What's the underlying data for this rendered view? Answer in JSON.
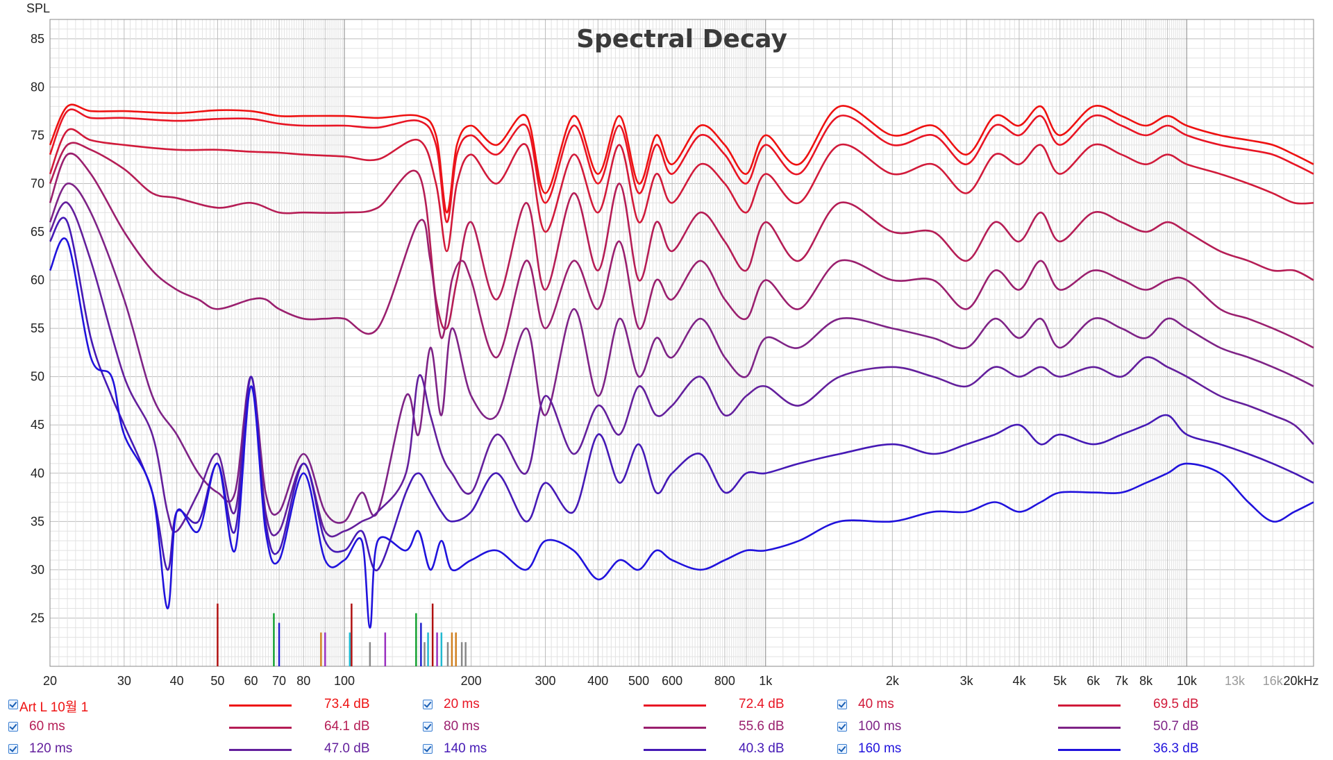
{
  "chart_data": {
    "type": "line",
    "title": "Spectral Decay",
    "ylabel": "SPL",
    "xlabel": "",
    "xscale": "log",
    "xlim": [
      20,
      20000
    ],
    "ylim": [
      20,
      87
    ],
    "y_ticks": [
      25,
      30,
      35,
      40,
      45,
      50,
      55,
      60,
      65,
      70,
      75,
      80,
      85
    ],
    "x_ticks": [
      {
        "v": 20,
        "label": "20"
      },
      {
        "v": 30,
        "label": "30"
      },
      {
        "v": 40,
        "label": "40"
      },
      {
        "v": 50,
        "label": "50"
      },
      {
        "v": 60,
        "label": "60"
      },
      {
        "v": 70,
        "label": "70"
      },
      {
        "v": 80,
        "label": "80"
      },
      {
        "v": 100,
        "label": "100"
      },
      {
        "v": 200,
        "label": "200"
      },
      {
        "v": 300,
        "label": "300"
      },
      {
        "v": 400,
        "label": "400"
      },
      {
        "v": 500,
        "label": "500"
      },
      {
        "v": 600,
        "label": "600"
      },
      {
        "v": 800,
        "label": "800"
      },
      {
        "v": 1000,
        "label": "1k"
      },
      {
        "v": 2000,
        "label": "2k"
      },
      {
        "v": 3000,
        "label": "3k"
      },
      {
        "v": 4000,
        "label": "4k"
      },
      {
        "v": 5000,
        "label": "5k"
      },
      {
        "v": 6000,
        "label": "6k"
      },
      {
        "v": 7000,
        "label": "7k"
      },
      {
        "v": 8000,
        "label": "8k"
      },
      {
        "v": 10000,
        "label": "10k"
      },
      {
        "v": 13000,
        "label": "13k",
        "grey": true
      },
      {
        "v": 16000,
        "label": "16k",
        "grey": true
      },
      {
        "v": 20000,
        "label": "20kHz"
      }
    ],
    "series": [
      {
        "name": "Art L 10월 1",
        "value_label": "73.4 dB",
        "color": "#ee1111",
        "x": [
          20,
          22,
          25,
          30,
          40,
          50,
          60,
          70,
          80,
          100,
          120,
          150,
          165,
          175,
          185,
          200,
          230,
          270,
          300,
          350,
          400,
          450,
          500,
          550,
          600,
          700,
          800,
          900,
          1000,
          1200,
          1500,
          2000,
          2500,
          3000,
          3500,
          4000,
          4500,
          5000,
          6000,
          7000,
          8000,
          9000,
          10000,
          12000,
          14000,
          16000,
          18000,
          20000
        ],
        "y": [
          74,
          78,
          77.5,
          77.5,
          77.3,
          77.6,
          77.5,
          77,
          77,
          77,
          76.8,
          77,
          75,
          67,
          74,
          76,
          74,
          77,
          69,
          77,
          71,
          77,
          70,
          75,
          72,
          76,
          74,
          71,
          75,
          72,
          78,
          75,
          76,
          73,
          77,
          76,
          78,
          75,
          78,
          77,
          76,
          77,
          76,
          75,
          74.5,
          74,
          73,
          72
        ]
      },
      {
        "name": "20 ms",
        "value_label": "72.4 dB",
        "color": "#e81524",
        "x": [
          20,
          22,
          25,
          30,
          40,
          50,
          60,
          70,
          80,
          100,
          120,
          150,
          165,
          175,
          185,
          200,
          230,
          270,
          300,
          350,
          400,
          450,
          500,
          550,
          600,
          700,
          800,
          900,
          1000,
          1200,
          1500,
          2000,
          2500,
          3000,
          3500,
          4000,
          4500,
          5000,
          6000,
          7000,
          8000,
          9000,
          10000,
          12000,
          14000,
          16000,
          18000,
          20000
        ],
        "y": [
          73,
          77.5,
          76.8,
          76.8,
          76.5,
          76.7,
          76.7,
          76.2,
          76,
          76,
          75.8,
          76.5,
          74,
          66,
          73,
          75,
          73,
          76,
          68,
          76,
          70,
          76,
          69,
          74,
          71,
          75,
          73,
          70,
          74,
          71,
          77,
          74,
          75,
          72,
          76,
          75,
          77,
          74,
          77,
          76,
          75,
          76,
          75,
          74,
          73.5,
          73,
          72,
          71
        ]
      },
      {
        "name": "40 ms",
        "value_label": "69.5 dB",
        "color": "#d11a3a",
        "x": [
          20,
          22,
          25,
          30,
          40,
          50,
          60,
          70,
          80,
          100,
          120,
          150,
          165,
          175,
          185,
          200,
          230,
          270,
          300,
          350,
          400,
          450,
          500,
          550,
          600,
          700,
          800,
          900,
          1000,
          1200,
          1500,
          2000,
          2500,
          3000,
          3500,
          4000,
          4500,
          5000,
          6000,
          7000,
          8000,
          9000,
          10000,
          12000,
          14000,
          16000,
          18000,
          20000
        ],
        "y": [
          71,
          75.5,
          74.5,
          74,
          73.5,
          73.5,
          73.3,
          73.2,
          73,
          72.8,
          72.5,
          74.5,
          70,
          63,
          70,
          73,
          70,
          74,
          65,
          73,
          67,
          74,
          66,
          71,
          68,
          72,
          70,
          67,
          71,
          68,
          74,
          71,
          72,
          69,
          73,
          72,
          74,
          71,
          74,
          73,
          72,
          73,
          72,
          71,
          70,
          69,
          68,
          68
        ]
      },
      {
        "name": "60 ms",
        "value_label": "64.1 dB",
        "color": "#b51d55",
        "x": [
          20,
          22,
          25,
          30,
          35,
          40,
          50,
          60,
          70,
          80,
          100,
          120,
          150,
          165,
          175,
          185,
          200,
          230,
          270,
          300,
          350,
          400,
          450,
          500,
          550,
          600,
          700,
          800,
          900,
          1000,
          1200,
          1500,
          2000,
          2500,
          3000,
          3500,
          4000,
          4500,
          5000,
          6000,
          7000,
          8000,
          9000,
          10000,
          12000,
          14000,
          16000,
          18000,
          20000
        ],
        "y": [
          70,
          74,
          73.5,
          71.5,
          69,
          68.5,
          67.5,
          68,
          67,
          67,
          67,
          67.5,
          71,
          58,
          55,
          60,
          66,
          58,
          68,
          59,
          69,
          61,
          70,
          60,
          66,
          63,
          67,
          64,
          61,
          66,
          62,
          68,
          65,
          65,
          62,
          66,
          64,
          67,
          64,
          67,
          66,
          65,
          66,
          65,
          63,
          62,
          61,
          61,
          60
        ]
      },
      {
        "name": "80 ms",
        "value_label": "55.6 dB",
        "color": "#9a1f6e",
        "x": [
          20,
          22,
          25,
          30,
          35,
          40,
          45,
          50,
          60,
          65,
          70,
          80,
          90,
          100,
          120,
          150,
          160,
          170,
          180,
          190,
          200,
          230,
          270,
          300,
          350,
          400,
          450,
          500,
          550,
          600,
          700,
          800,
          900,
          1000,
          1200,
          1500,
          2000,
          2500,
          3000,
          3500,
          4000,
          4500,
          5000,
          6000,
          7000,
          8000,
          9000,
          10000,
          12000,
          14000,
          16000,
          18000,
          20000
        ],
        "y": [
          68,
          73,
          71,
          65,
          61,
          59,
          58,
          57,
          58,
          58,
          57,
          56,
          56,
          56,
          55,
          66,
          62,
          54,
          60,
          62,
          60,
          52,
          62,
          55,
          62,
          57,
          64,
          55,
          60,
          58,
          62,
          58,
          56,
          60,
          57,
          62,
          60,
          60,
          57,
          61,
          59,
          62,
          59,
          61,
          60,
          59,
          60,
          60,
          57,
          56,
          55,
          54,
          53
        ]
      },
      {
        "name": "100 ms",
        "value_label": "50.7 dB",
        "color": "#7e2386",
        "x": [
          20,
          22,
          25,
          30,
          35,
          40,
          45,
          50,
          55,
          60,
          65,
          70,
          80,
          90,
          100,
          110,
          120,
          140,
          150,
          160,
          170,
          180,
          200,
          230,
          270,
          300,
          350,
          400,
          450,
          500,
          550,
          600,
          700,
          800,
          900,
          1000,
          1200,
          1500,
          2000,
          2500,
          3000,
          3500,
          4000,
          4500,
          5000,
          6000,
          7000,
          8000,
          9000,
          10000,
          12000,
          14000,
          16000,
          18000,
          20000
        ],
        "y": [
          66,
          70,
          67,
          58,
          48,
          44,
          40,
          38,
          38,
          50,
          38,
          36,
          42,
          36,
          35,
          38,
          36,
          48,
          44,
          53,
          46,
          55,
          48,
          46,
          55,
          46,
          57,
          48,
          56,
          50,
          54,
          52,
          56,
          52,
          50,
          54,
          53,
          56,
          55,
          54,
          53,
          56,
          54,
          56,
          53,
          56,
          55,
          54,
          56,
          55,
          53,
          52,
          51,
          50,
          49
        ]
      },
      {
        "name": "120 ms",
        "value_label": "47.0 dB",
        "color": "#631f9c",
        "x": [
          20,
          22,
          25,
          30,
          35,
          38,
          40,
          45,
          50,
          55,
          60,
          65,
          70,
          80,
          90,
          100,
          110,
          120,
          140,
          150,
          160,
          170,
          180,
          200,
          230,
          270,
          300,
          350,
          400,
          450,
          500,
          550,
          600,
          700,
          800,
          900,
          1000,
          1200,
          1500,
          2000,
          2500,
          3000,
          3500,
          4000,
          4500,
          5000,
          6000,
          7000,
          8000,
          9000,
          10000,
          12000,
          14000,
          16000,
          18000,
          20000
        ],
        "y": [
          65,
          68,
          62,
          50,
          44,
          36,
          34,
          38,
          42,
          36,
          50,
          36,
          34,
          41,
          34,
          34,
          35,
          36,
          40,
          50,
          46,
          42,
          40,
          38,
          44,
          40,
          48,
          42,
          47,
          44,
          49,
          46,
          47,
          50,
          46,
          48,
          49,
          47,
          50,
          51,
          50,
          49,
          51,
          50,
          51,
          50,
          51,
          50,
          52,
          51,
          50,
          48,
          47,
          46,
          45,
          43
        ]
      },
      {
        "name": "140 ms",
        "value_label": "40.3 dB",
        "color": "#4519b5",
        "x": [
          20,
          22,
          25,
          28,
          30,
          35,
          38,
          40,
          45,
          50,
          55,
          60,
          65,
          70,
          80,
          90,
          100,
          110,
          120,
          140,
          150,
          160,
          170,
          180,
          200,
          230,
          270,
          300,
          350,
          400,
          450,
          500,
          550,
          600,
          700,
          800,
          900,
          1000,
          1200,
          1500,
          2000,
          2500,
          3000,
          3500,
          4000,
          4500,
          5000,
          6000,
          7000,
          8000,
          9000,
          10000,
          12000,
          14000,
          16000,
          18000,
          20000
        ],
        "y": [
          64,
          66,
          54,
          48,
          45,
          38,
          30,
          36,
          35,
          41,
          34,
          50,
          35,
          32,
          41,
          33,
          32,
          34,
          30,
          38,
          40,
          38,
          36,
          35,
          36,
          40,
          35,
          39,
          36,
          44,
          39,
          43,
          38,
          40,
          42,
          38,
          40,
          40,
          41,
          42,
          43,
          42,
          43,
          44,
          45,
          43,
          44,
          43,
          44,
          45,
          46,
          44,
          43,
          42,
          41,
          40,
          39
        ]
      },
      {
        "name": "160 ms",
        "value_label": "36.3 dB",
        "color": "#2012dc",
        "x": [
          20,
          22,
          25,
          28,
          30,
          35,
          38,
          40,
          45,
          50,
          55,
          60,
          65,
          70,
          80,
          90,
          100,
          110,
          115,
          120,
          140,
          150,
          160,
          170,
          180,
          200,
          230,
          270,
          300,
          350,
          400,
          450,
          500,
          550,
          600,
          700,
          800,
          900,
          1000,
          1200,
          1500,
          2000,
          2500,
          3000,
          3500,
          4000,
          4500,
          5000,
          6000,
          7000,
          8000,
          9000,
          10000,
          12000,
          14000,
          16000,
          18000,
          20000
        ],
        "y": [
          61,
          64,
          52,
          50,
          44,
          38,
          26,
          36,
          34,
          41,
          32,
          49,
          34,
          31,
          40,
          31,
          31,
          33,
          24,
          33,
          32,
          34,
          30,
          33,
          30,
          31,
          32,
          30,
          33,
          32,
          29,
          31,
          30,
          32,
          31,
          30,
          31,
          32,
          32,
          33,
          35,
          35,
          36,
          36,
          37,
          36,
          37,
          38,
          38,
          38,
          39,
          40,
          41,
          40,
          37,
          35,
          36,
          37
        ]
      }
    ]
  }
}
